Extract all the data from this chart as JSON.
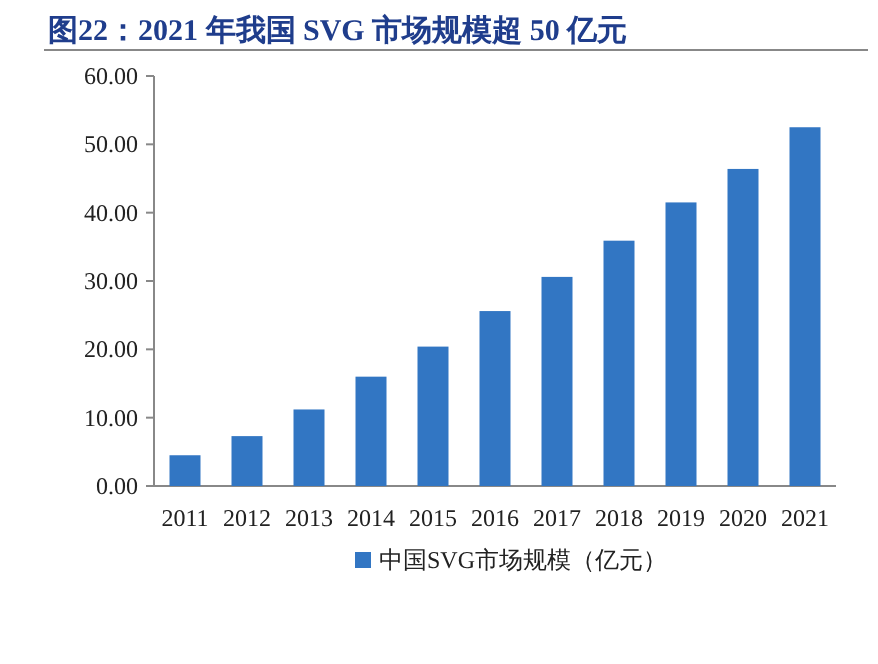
{
  "chart_data": {
    "type": "bar",
    "title": "图22：2021 年我国 SVG 市场规模超 50 亿元",
    "categories": [
      "2011",
      "2012",
      "2013",
      "2014",
      "2015",
      "2016",
      "2017",
      "2018",
      "2019",
      "2020",
      "2021"
    ],
    "series": [
      {
        "name": "中国SVG市场规模（亿元）",
        "color": "#3276c3",
        "values": [
          4.5,
          7.3,
          11.2,
          16.0,
          20.4,
          25.6,
          30.6,
          35.9,
          41.5,
          46.4,
          52.5
        ]
      }
    ],
    "ylim": [
      0,
      60
    ],
    "yticks": [
      {
        "value": 0,
        "label": "0.00"
      },
      {
        "value": 10,
        "label": "10.00"
      },
      {
        "value": 20,
        "label": "20.00"
      },
      {
        "value": 30,
        "label": "30.00"
      },
      {
        "value": 40,
        "label": "40.00"
      },
      {
        "value": 50,
        "label": "50.00"
      },
      {
        "value": 60,
        "label": "60.00"
      }
    ],
    "grid": false,
    "legend": "bottom"
  }
}
